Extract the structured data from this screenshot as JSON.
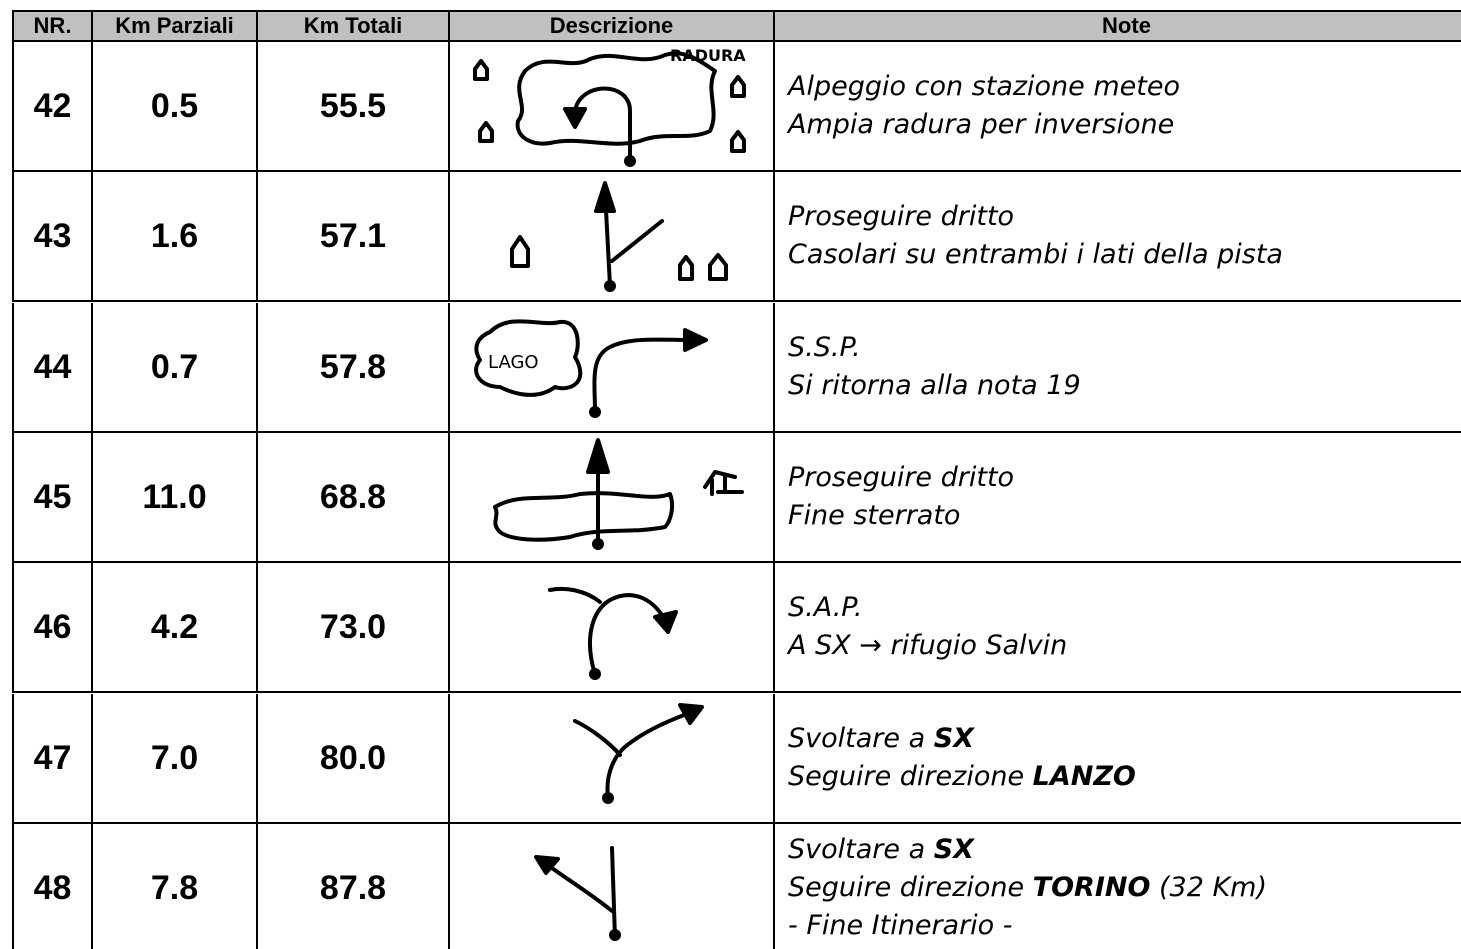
{
  "table": {
    "headers": [
      "NR.",
      "Km Parziali",
      "Km Totali",
      "Descrizione",
      "Note"
    ],
    "rows": [
      {
        "nr": "42",
        "parziali": "0.5",
        "totali": "55.5",
        "sketch_label": "RADURA",
        "note": [
          [
            {
              "text": "Alpeggio con stazione meteo"
            }
          ],
          [
            {
              "text": "Ampia radura per inversione"
            }
          ]
        ]
      },
      {
        "nr": "43",
        "parziali": "1.6",
        "totali": "57.1",
        "note": [
          [
            {
              "text": "Proseguire dritto"
            }
          ],
          [
            {
              "text": "Casolari su entrambi i lati della pista"
            }
          ]
        ]
      },
      {
        "nr": "44",
        "parziali": "0.7",
        "totali": "57.8",
        "sketch_label": "LAGO",
        "note": [
          [
            {
              "text": "S.S.P."
            }
          ],
          [
            {
              "text": "Si ritorna alla nota 19"
            }
          ]
        ]
      },
      {
        "nr": "45",
        "parziali": "11.0",
        "totali": "68.8",
        "note": [
          [
            {
              "text": "Proseguire dritto"
            }
          ],
          [
            {
              "text": "Fine sterrato"
            }
          ]
        ]
      },
      {
        "nr": "46",
        "parziali": "4.2",
        "totali": "73.0",
        "note": [
          [
            {
              "text": "S.A.P."
            }
          ],
          [
            {
              "text": "A SX → rifugio Salvin"
            }
          ]
        ]
      },
      {
        "nr": "47",
        "parziali": "7.0",
        "totali": "80.0",
        "note": [
          [
            {
              "text": "Svoltare a "
            },
            {
              "text": "SX",
              "bold": true
            }
          ],
          [
            {
              "text": "Seguire direzione "
            },
            {
              "text": "LANZO",
              "bold": true
            }
          ]
        ]
      },
      {
        "nr": "48",
        "parziali": "7.8",
        "totali": "87.8",
        "note": [
          [
            {
              "text": "Svoltare a "
            },
            {
              "text": "SX",
              "bold": true
            }
          ],
          [
            {
              "text": "Seguire direzione "
            },
            {
              "text": "TORINO",
              "bold": true
            },
            {
              "text": " (32 Km)"
            }
          ],
          [
            {
              "text": "- Fine Itinerario -"
            }
          ]
        ]
      }
    ]
  }
}
